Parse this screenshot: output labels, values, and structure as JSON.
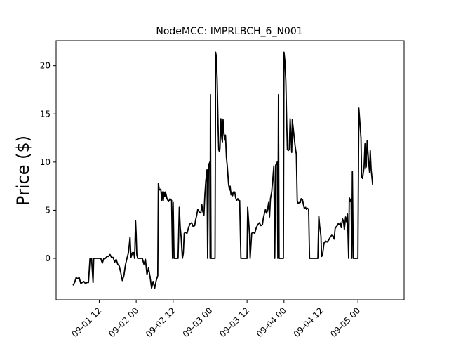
{
  "chart_data": {
    "type": "line",
    "title": "NodeMCC: IMPRLBCH_6_N001",
    "xlabel": "",
    "ylabel": "Price ($)",
    "xlim": [
      "2023-09-01 00:00",
      "2023-09-05 12:00"
    ],
    "xlim_start_hours": -2,
    "xlim_end_hours": 111,
    "ylim": [
      -4.3,
      22.6
    ],
    "x_ticks": [
      {
        "label": "09-01 12",
        "hours": 12
      },
      {
        "label": "09-02 00",
        "hours": 24
      },
      {
        "label": "09-02 12",
        "hours": 36
      },
      {
        "label": "09-03 00",
        "hours": 48
      },
      {
        "label": "09-03 12",
        "hours": 60
      },
      {
        "label": "09-04 00",
        "hours": 72
      },
      {
        "label": "09-04 12",
        "hours": 84
      },
      {
        "label": "09-05 00",
        "hours": 96
      }
    ],
    "y_ticks": [
      {
        "label": "0",
        "value": 0
      },
      {
        "label": "5",
        "value": 5
      },
      {
        "label": "10",
        "value": 10
      },
      {
        "label": "15",
        "value": 15
      },
      {
        "label": "20",
        "value": 20
      }
    ],
    "grid": false,
    "color": "#000000",
    "series": [
      {
        "points_hours_value": [
          [
            3.5,
            -2.8
          ],
          [
            4,
            -2.5
          ],
          [
            4.5,
            -2.0
          ],
          [
            5,
            -2.1
          ],
          [
            5.5,
            -2.0
          ],
          [
            6,
            -2.6
          ],
          [
            6.5,
            -2.5
          ],
          [
            7,
            -2.4
          ],
          [
            7.5,
            -2.6
          ],
          [
            8,
            -2.5
          ],
          [
            8.5,
            -2.5
          ],
          [
            9,
            0
          ],
          [
            9.5,
            0
          ],
          [
            10,
            -2.5
          ],
          [
            10.2,
            0
          ],
          [
            11,
            0
          ],
          [
            12,
            0
          ],
          [
            12.5,
            0
          ],
          [
            13,
            -0.5
          ],
          [
            13.5,
            0
          ],
          [
            14,
            0
          ],
          [
            14.5,
            0.2
          ],
          [
            15,
            0.2
          ],
          [
            15.5,
            0.4
          ],
          [
            16,
            0.1
          ],
          [
            16.5,
            0.1
          ],
          [
            17,
            -0.4
          ],
          [
            17.5,
            -0.1
          ],
          [
            18,
            -0.6
          ],
          [
            18.5,
            -0.8
          ],
          [
            19,
            -1.5
          ],
          [
            19.5,
            -2.3
          ],
          [
            20,
            -1.8
          ],
          [
            20.5,
            -0.7
          ],
          [
            21,
            0
          ],
          [
            21.5,
            0.6
          ],
          [
            22,
            2.2
          ],
          [
            22.3,
            0.1
          ],
          [
            22.8,
            0.6
          ],
          [
            23.2,
            0.6
          ],
          [
            23.5,
            0
          ],
          [
            23.8,
            3.9
          ],
          [
            24,
            2.5
          ],
          [
            24.2,
            0.4
          ],
          [
            24.5,
            0
          ],
          [
            25,
            0
          ],
          [
            25.5,
            0
          ],
          [
            26,
            0
          ],
          [
            26.5,
            -0.6
          ],
          [
            27,
            -0.1
          ],
          [
            27.5,
            -1.7
          ],
          [
            28,
            -1.0
          ],
          [
            28.5,
            -1.9
          ],
          [
            29,
            -3.1
          ],
          [
            29.5,
            -2.4
          ],
          [
            30,
            -3.1
          ],
          [
            30.5,
            -2.3
          ],
          [
            31,
            -1.8
          ],
          [
            31.2,
            7.8
          ],
          [
            31.5,
            7.1
          ],
          [
            32,
            7.2
          ],
          [
            32.3,
            6.0
          ],
          [
            32.5,
            6.9
          ],
          [
            32.8,
            6.0
          ],
          [
            33,
            6.9
          ],
          [
            33.3,
            6.4
          ],
          [
            33.5,
            6.9
          ],
          [
            34,
            6.2
          ],
          [
            34.5,
            5.9
          ],
          [
            35,
            6.2
          ],
          [
            35.5,
            6.0
          ],
          [
            35.8,
            0
          ],
          [
            36,
            5.8
          ],
          [
            36.3,
            0
          ],
          [
            36.8,
            0
          ],
          [
            37,
            0
          ],
          [
            37.3,
            0
          ],
          [
            37.6,
            0
          ],
          [
            38,
            5.3
          ],
          [
            38.3,
            3.2
          ],
          [
            38.6,
            2.2
          ],
          [
            39,
            0
          ],
          [
            39.3,
            0.5
          ],
          [
            39.6,
            2.6
          ],
          [
            40,
            2.7
          ],
          [
            40.5,
            2.6
          ],
          [
            41,
            3.2
          ],
          [
            41.5,
            3.6
          ],
          [
            42,
            3.7
          ],
          [
            42.5,
            3.3
          ],
          [
            43,
            3.4
          ],
          [
            43.3,
            4.0
          ],
          [
            43.6,
            4.4
          ],
          [
            44,
            5.1
          ],
          [
            44.5,
            4.8
          ],
          [
            45,
            4.7
          ],
          [
            45.3,
            5.6
          ],
          [
            45.6,
            4.9
          ],
          [
            46,
            4.5
          ],
          [
            46.3,
            6.6
          ],
          [
            46.6,
            8.0
          ],
          [
            47,
            9.2
          ],
          [
            47.2,
            0
          ],
          [
            47.5,
            9.8
          ],
          [
            47.7,
            9.8
          ],
          [
            47.9,
            10.0
          ],
          [
            48,
            0
          ],
          [
            48.1,
            17.0
          ],
          [
            48.3,
            0
          ],
          [
            48.6,
            0
          ],
          [
            49,
            0
          ],
          [
            49.3,
            0
          ],
          [
            49.6,
            0
          ],
          [
            49.8,
            21.4
          ],
          [
            50,
            21.0
          ],
          [
            50.3,
            18.5
          ],
          [
            50.6,
            13.7
          ],
          [
            50.8,
            11.3
          ],
          [
            51,
            11.1
          ],
          [
            51.2,
            11.4
          ],
          [
            51.5,
            14.5
          ],
          [
            51.8,
            12.5
          ],
          [
            52,
            12.1
          ],
          [
            52.2,
            14.4
          ],
          [
            52.5,
            13.0
          ],
          [
            52.8,
            12.3
          ],
          [
            53,
            12.8
          ],
          [
            53.3,
            10.5
          ],
          [
            53.6,
            9.5
          ],
          [
            54,
            7.7
          ],
          [
            54.3,
            7.1
          ],
          [
            54.5,
            7.5
          ],
          [
            54.8,
            6.6
          ],
          [
            55,
            6.9
          ],
          [
            55.3,
            6.5
          ],
          [
            55.6,
            6.9
          ],
          [
            56,
            6.9
          ],
          [
            56.3,
            6.3
          ],
          [
            56.6,
            6.0
          ],
          [
            57,
            6.2
          ],
          [
            57.3,
            6.0
          ],
          [
            57.6,
            6.0
          ],
          [
            58,
            0
          ],
          [
            58.5,
            0
          ],
          [
            59,
            0
          ],
          [
            59.5,
            0
          ],
          [
            60,
            0
          ],
          [
            60.2,
            5.3
          ],
          [
            60.5,
            3.9
          ],
          [
            60.8,
            2.5
          ],
          [
            61,
            0
          ],
          [
            61.5,
            2.6
          ],
          [
            62,
            2.7
          ],
          [
            62.5,
            2.6
          ],
          [
            63,
            3.2
          ],
          [
            63.5,
            3.5
          ],
          [
            64,
            3.7
          ],
          [
            64.5,
            3.4
          ],
          [
            65,
            3.5
          ],
          [
            65.3,
            4.2
          ],
          [
            65.6,
            4.6
          ],
          [
            66,
            5.1
          ],
          [
            66.3,
            4.7
          ],
          [
            66.6,
            4.9
          ],
          [
            67,
            5.8
          ],
          [
            67.3,
            4.3
          ],
          [
            67.6,
            6.2
          ],
          [
            68,
            6.9
          ],
          [
            68.4,
            8.4
          ],
          [
            68.7,
            9.6
          ],
          [
            69,
            0
          ],
          [
            69.3,
            9.7
          ],
          [
            69.6,
            9.8
          ],
          [
            69.8,
            10.0
          ],
          [
            70,
            0
          ],
          [
            70.2,
            17.0
          ],
          [
            70.4,
            0
          ],
          [
            70.7,
            0
          ],
          [
            71,
            0
          ],
          [
            71.3,
            0
          ],
          [
            71.6,
            0
          ],
          [
            71.8,
            0
          ],
          [
            72,
            21.4
          ],
          [
            72.3,
            20.5
          ],
          [
            72.6,
            18.3
          ],
          [
            72.9,
            13.8
          ],
          [
            73.1,
            11.3
          ],
          [
            73.4,
            11.2
          ],
          [
            73.7,
            11.3
          ],
          [
            74,
            14.5
          ],
          [
            74.3,
            12.3
          ],
          [
            74.5,
            11.0
          ],
          [
            74.7,
            14.4
          ],
          [
            75,
            13.5
          ],
          [
            75.3,
            12.6
          ],
          [
            75.6,
            11.7
          ],
          [
            76,
            10.8
          ],
          [
            76.3,
            6.0
          ],
          [
            76.6,
            5.7
          ],
          [
            77,
            5.8
          ],
          [
            77.3,
            5.8
          ],
          [
            77.6,
            6.2
          ],
          [
            78,
            6.1
          ],
          [
            78.3,
            5.6
          ],
          [
            78.6,
            5.2
          ],
          [
            79,
            5.3
          ],
          [
            79.3,
            5.1
          ],
          [
            79.6,
            5.2
          ],
          [
            80,
            5.1
          ],
          [
            80.3,
            0
          ],
          [
            81,
            0
          ],
          [
            81.5,
            0
          ],
          [
            82,
            0
          ],
          [
            82.3,
            0
          ],
          [
            82.6,
            0
          ],
          [
            83,
            0
          ],
          [
            83.3,
            4.4
          ],
          [
            83.6,
            3.3
          ],
          [
            84,
            2.3
          ],
          [
            84.2,
            0.2
          ],
          [
            84.5,
            0.3
          ],
          [
            85,
            1.6
          ],
          [
            85.5,
            1.8
          ],
          [
            86,
            1.7
          ],
          [
            86.5,
            1.9
          ],
          [
            87,
            2.2
          ],
          [
            87.5,
            2.4
          ],
          [
            88,
            2.3
          ],
          [
            88.3,
            2.0
          ],
          [
            88.6,
            3.1
          ],
          [
            89,
            3.3
          ],
          [
            89.3,
            3.4
          ],
          [
            89.6,
            3.6
          ],
          [
            90,
            3.5
          ],
          [
            90.3,
            3.7
          ],
          [
            90.6,
            3.2
          ],
          [
            91,
            4.1
          ],
          [
            91.3,
            3.9
          ],
          [
            91.6,
            3.0
          ],
          [
            92,
            4.3
          ],
          [
            92.3,
            3.8
          ],
          [
            92.6,
            4.6
          ],
          [
            93,
            0
          ],
          [
            93.2,
            6.3
          ],
          [
            93.5,
            5.9
          ],
          [
            93.8,
            6.2
          ],
          [
            94,
            0
          ],
          [
            94.2,
            9.0
          ],
          [
            94.5,
            0
          ],
          [
            95,
            0
          ],
          [
            95.5,
            0
          ],
          [
            96,
            0
          ],
          [
            96.3,
            15.6
          ],
          [
            96.6,
            14.3
          ],
          [
            97,
            12.5
          ],
          [
            97.2,
            8.5
          ],
          [
            97.5,
            8.3
          ],
          [
            97.8,
            9.0
          ],
          [
            98,
            9.5
          ],
          [
            98.3,
            11.9
          ],
          [
            98.5,
            9.4
          ],
          [
            98.7,
            9.5
          ],
          [
            99,
            12.2
          ],
          [
            99.3,
            10.8
          ],
          [
            99.5,
            9.9
          ],
          [
            99.8,
            8.9
          ],
          [
            100,
            11.2
          ],
          [
            100.3,
            9.2
          ],
          [
            100.5,
            8.6
          ],
          [
            100.8,
            7.6
          ]
        ]
      }
    ]
  }
}
